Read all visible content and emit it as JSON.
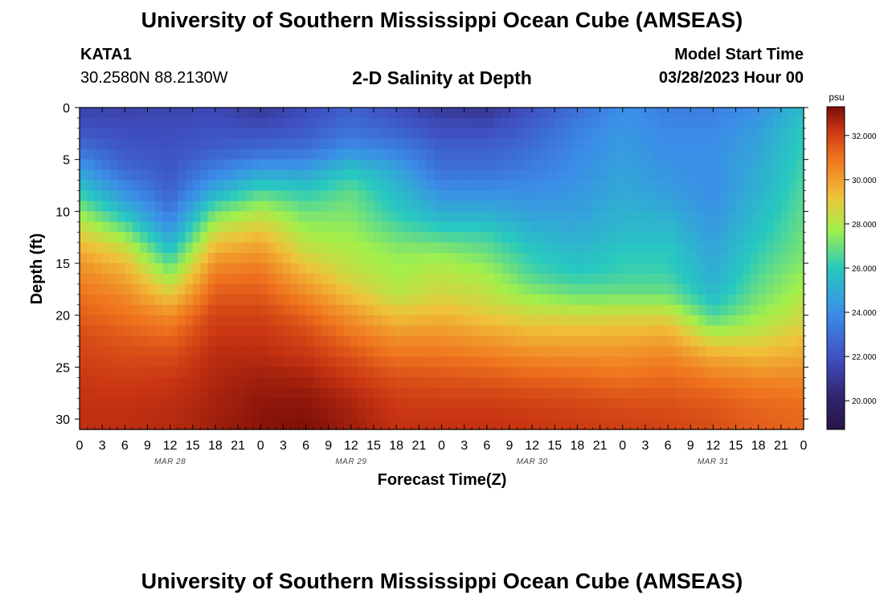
{
  "header": {
    "title": "University of Southern Mississippi Ocean Cube (AMSEAS)",
    "station": "KATA1",
    "coords": "30.2580N  88.2130W",
    "subtitle": "2-D Salinity at Depth",
    "model_start_label": "Model Start Time",
    "model_start_value": "03/28/2023 Hour 00"
  },
  "footer": {
    "title": "University of Southern Mississippi Ocean Cube (AMSEAS)"
  },
  "chart_data": {
    "type": "heatmap",
    "title": "2-D Salinity at Depth",
    "xlabel": "Forecast Time(Z)",
    "ylabel": "Depth (ft)",
    "x_tick_labels": [
      "0",
      "3",
      "6",
      "9",
      "12",
      "15",
      "18",
      "21",
      "0",
      "3",
      "6",
      "9",
      "12",
      "15",
      "18",
      "21",
      "0",
      "3",
      "6",
      "9",
      "12",
      "15",
      "18",
      "21",
      "0",
      "3",
      "6",
      "9",
      "12",
      "15",
      "18",
      "21",
      "0"
    ],
    "date_labels": [
      "MAR 28",
      "MAR 29",
      "MAR 30",
      "MAR 31"
    ],
    "x_range_hours": [
      0,
      96
    ],
    "y_range_ft": [
      0,
      31
    ],
    "y_ticks": [
      0,
      5,
      10,
      15,
      20,
      25,
      30
    ],
    "colorbar": {
      "unit": "psu",
      "range": [
        18.7,
        33.3
      ],
      "ticks": [
        20,
        22,
        24,
        26,
        28,
        30,
        32
      ],
      "tick_labels": [
        "20.000",
        "22.000",
        "24.000",
        "26.000",
        "28.000",
        "30.000",
        "32.000"
      ]
    },
    "depth_levels_ft": [
      0,
      2,
      4,
      6,
      8,
      10,
      12,
      14,
      16,
      18,
      20,
      22,
      24,
      26,
      28,
      30,
      31
    ],
    "times_hours": [
      0,
      6,
      12,
      18,
      24,
      30,
      36,
      42,
      48,
      54,
      60,
      66,
      72,
      78,
      84,
      90,
      96
    ],
    "salinity": [
      [
        21.5,
        21.4,
        21.5,
        21.6,
        21.0,
        21.8,
        22.5,
        21.8,
        21.0,
        20.8,
        22.0,
        23.0,
        24.0,
        23.5,
        23.5,
        24.0,
        25.5
      ],
      [
        22.0,
        21.8,
        21.8,
        22.0,
        21.8,
        22.2,
        23.0,
        22.5,
        21.8,
        21.8,
        22.5,
        23.5,
        24.3,
        23.8,
        23.8,
        24.5,
        26.0
      ],
      [
        23.0,
        22.2,
        22.0,
        22.4,
        22.8,
        23.0,
        24.0,
        23.5,
        22.5,
        22.5,
        23.0,
        23.8,
        24.5,
        24.0,
        24.0,
        24.8,
        26.2
      ],
      [
        24.5,
        22.8,
        22.2,
        23.5,
        24.5,
        24.5,
        25.8,
        24.8,
        23.0,
        23.0,
        23.5,
        24.0,
        24.7,
        24.2,
        24.0,
        25.0,
        26.4
      ],
      [
        26.0,
        24.0,
        22.5,
        25.0,
        26.5,
        26.0,
        26.8,
        25.5,
        24.0,
        24.0,
        24.0,
        24.3,
        24.9,
        24.5,
        24.0,
        25.2,
        26.6
      ],
      [
        27.5,
        25.5,
        23.2,
        27.0,
        28.0,
        27.0,
        27.2,
        26.0,
        25.0,
        25.0,
        24.5,
        24.6,
        25.2,
        25.0,
        24.2,
        25.5,
        26.8
      ],
      [
        28.8,
        27.3,
        24.5,
        28.5,
        29.2,
        27.8,
        27.6,
        26.8,
        26.3,
        26.2,
        25.3,
        25.0,
        25.5,
        25.5,
        24.5,
        25.8,
        27.0
      ],
      [
        29.8,
        28.8,
        26.0,
        29.8,
        30.2,
        28.5,
        28.0,
        27.5,
        27.5,
        27.0,
        26.0,
        25.5,
        26.0,
        26.0,
        24.8,
        26.2,
        27.2
      ],
      [
        30.5,
        29.8,
        27.5,
        30.8,
        31.0,
        29.5,
        28.4,
        27.8,
        28.2,
        27.8,
        26.5,
        26.0,
        26.3,
        26.3,
        25.0,
        26.6,
        27.6
      ],
      [
        31.0,
        30.5,
        29.0,
        31.5,
        31.5,
        30.5,
        29.2,
        28.2,
        28.6,
        28.3,
        27.5,
        27.0,
        27.0,
        27.0,
        25.5,
        27.0,
        28.0
      ],
      [
        31.4,
        31.0,
        30.4,
        32.0,
        32.0,
        31.3,
        30.2,
        29.2,
        29.5,
        29.0,
        28.6,
        28.5,
        28.6,
        28.6,
        26.5,
        27.6,
        28.5
      ],
      [
        31.8,
        31.5,
        31.2,
        32.3,
        32.3,
        31.9,
        31.0,
        30.3,
        30.3,
        30.0,
        29.6,
        29.6,
        29.6,
        29.8,
        28.2,
        28.5,
        29.2
      ],
      [
        32.0,
        31.8,
        31.8,
        32.5,
        32.5,
        32.3,
        31.7,
        31.0,
        31.0,
        30.8,
        30.5,
        30.4,
        30.4,
        30.6,
        29.8,
        29.5,
        29.8
      ],
      [
        32.2,
        32.1,
        32.2,
        32.6,
        32.8,
        32.7,
        32.2,
        31.7,
        31.6,
        31.5,
        31.3,
        31.2,
        31.0,
        31.2,
        30.8,
        30.5,
        30.5
      ],
      [
        32.3,
        32.3,
        32.4,
        32.7,
        33.0,
        33.0,
        32.6,
        32.1,
        32.0,
        32.0,
        31.9,
        31.8,
        31.6,
        31.6,
        31.4,
        31.1,
        31.0
      ],
      [
        32.4,
        32.4,
        32.5,
        32.8,
        33.1,
        33.2,
        32.8,
        32.3,
        32.3,
        32.3,
        32.2,
        32.1,
        32.0,
        31.9,
        31.7,
        31.4,
        31.2
      ],
      [
        32.4,
        32.4,
        32.5,
        32.8,
        33.1,
        33.2,
        32.8,
        32.3,
        32.3,
        32.3,
        32.2,
        32.1,
        32.0,
        31.9,
        31.7,
        31.4,
        31.2
      ]
    ]
  }
}
